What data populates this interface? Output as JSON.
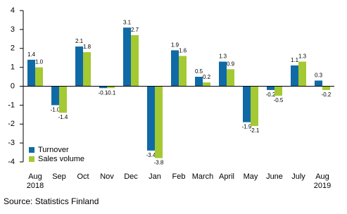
{
  "chart_data": {
    "type": "bar",
    "categories": [
      "Aug\n2018",
      "Sep",
      "Oct",
      "Nov",
      "Dec",
      "Jan",
      "Feb",
      "March",
      "April",
      "May",
      "June",
      "July",
      "Aug\n2019"
    ],
    "series": [
      {
        "name": "Turnover",
        "color": "#0f6aa6",
        "values": [
          1.4,
          -1.0,
          2.1,
          -0.1,
          3.1,
          -3.4,
          1.9,
          0.5,
          1.3,
          -1.9,
          -0.2,
          1.1,
          0.3
        ],
        "value_labels": [
          "1.4",
          "-1.0",
          "2.1",
          "-0.1",
          "3.1",
          "-3.4",
          "1.9",
          "0.5",
          "1.3",
          "-1.9",
          "-0.2",
          "1.1",
          "0.3"
        ]
      },
      {
        "name": "Sales volume",
        "color": "#a4c932",
        "values": [
          1.0,
          -1.4,
          1.8,
          -0.1,
          2.7,
          -3.8,
          1.6,
          0.2,
          0.9,
          -2.1,
          -0.5,
          1.3,
          -0.2
        ],
        "value_labels": [
          "1.0",
          "-1.4",
          "1.8",
          "-0.1",
          "2.7",
          "-3.8",
          "1.6",
          "0.2",
          "0.9",
          "-2.1",
          "-0.5",
          "1.3",
          "-0.2"
        ]
      }
    ],
    "ylim": [
      -4,
      4
    ],
    "yticks": [
      -4,
      -3,
      -2,
      -1,
      0,
      1,
      2,
      3,
      4
    ],
    "grid": false,
    "legend": "lower-left"
  },
  "source": "Source: Statistics Finland"
}
